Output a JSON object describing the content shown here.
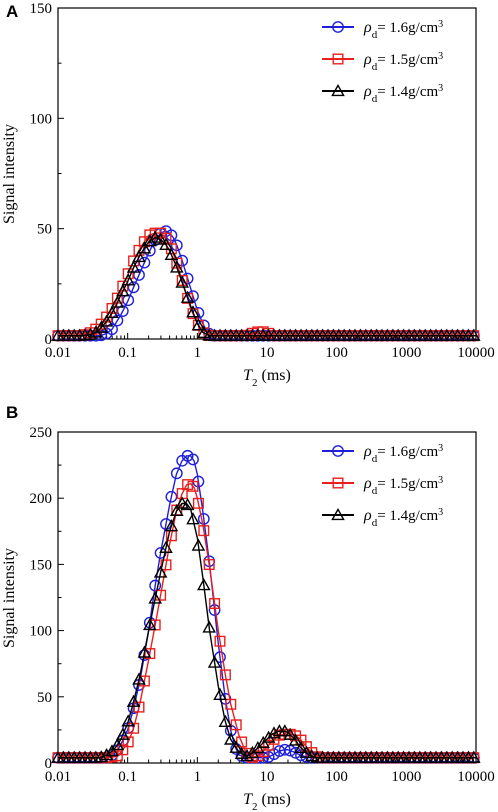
{
  "chart_data": [
    {
      "panel": "A",
      "type": "scatter",
      "xlabel_main": "T",
      "xlabel_sub": "2",
      "xlabel_unit": " (ms)",
      "ylabel": "Signal intensity",
      "xscale": "log",
      "xlim": [
        0.01,
        10000
      ],
      "ylim": [
        0,
        150
      ],
      "xticks": [
        "0.01",
        "0.1",
        "1",
        "10",
        "100",
        "1000",
        "10000"
      ],
      "yticks": [
        "0",
        "50",
        "100",
        "150"
      ],
      "legend_position": "top-right",
      "series": [
        {
          "name": "ρd= 1.6g/cm3",
          "name_main": "ρ",
          "name_sub": "d",
          "name_rest": "= 1.6g/cm",
          "name_sup": "3",
          "color": "#1f1fdb",
          "marker": "circle",
          "x": [
            0.01,
            0.02,
            0.03,
            0.04,
            0.05,
            0.06,
            0.07,
            0.08,
            0.1,
            0.12,
            0.15,
            0.2,
            0.25,
            0.3,
            0.35,
            0.4,
            0.45,
            0.5,
            0.6,
            0.7,
            0.8,
            1,
            1.2,
            1.4,
            1.6,
            2,
            3,
            5,
            8,
            10,
            12,
            15,
            20,
            30,
            50,
            100,
            1000,
            10000
          ],
          "y": [
            1.5,
            1.5,
            1.5,
            1.5,
            2.5,
            4.5,
            8,
            11,
            17,
            23,
            30,
            39,
            45,
            48,
            49,
            48,
            46,
            43,
            36,
            29,
            23,
            13,
            7,
            3,
            1.5,
            1.5,
            1.5,
            1.5,
            1.5,
            1.5,
            1.5,
            1.5,
            1.5,
            1.5,
            1.5,
            1.5,
            1.5,
            1.5
          ]
        },
        {
          "name": "ρd= 1.5g/cm3",
          "name_main": "ρ",
          "name_sub": "d",
          "name_rest": "= 1.5g/cm",
          "name_sup": "3",
          "color": "#e8201c",
          "marker": "square",
          "x": [
            0.01,
            0.02,
            0.025,
            0.03,
            0.035,
            0.04,
            0.05,
            0.06,
            0.07,
            0.08,
            0.1,
            0.12,
            0.15,
            0.2,
            0.25,
            0.3,
            0.35,
            0.4,
            0.5,
            0.6,
            0.7,
            0.8,
            1,
            1.2,
            1.5,
            2,
            3,
            5,
            6,
            8,
            10,
            12,
            20,
            50,
            100,
            1000,
            10000
          ],
          "y": [
            1.5,
            1.5,
            2,
            3,
            4.5,
            6,
            10,
            14,
            18,
            22,
            29,
            35,
            41,
            47,
            48,
            48,
            46,
            43,
            35,
            27,
            20,
            14,
            7,
            3,
            1.5,
            1.5,
            1.5,
            1.5,
            2.5,
            3.5,
            3,
            1.5,
            1.5,
            1.5,
            1.5,
            1.5,
            1.5
          ]
        },
        {
          "name": "ρd= 1.4g/cm3",
          "name_main": "ρ",
          "name_sub": "d",
          "name_rest": "= 1.4g/cm",
          "name_sup": "3",
          "color": "#000000",
          "marker": "triangle",
          "x": [
            0.01,
            0.02,
            0.03,
            0.035,
            0.04,
            0.05,
            0.06,
            0.07,
            0.08,
            0.1,
            0.12,
            0.15,
            0.2,
            0.25,
            0.3,
            0.35,
            0.4,
            0.5,
            0.6,
            0.7,
            0.8,
            1,
            1.2,
            1.5,
            2,
            3,
            5,
            10,
            20,
            50,
            100,
            1000,
            10000
          ],
          "y": [
            1.5,
            1.5,
            2,
            3,
            4.5,
            8,
            12,
            16,
            20,
            26,
            32,
            38,
            44,
            46,
            45,
            43,
            40,
            33,
            26,
            20,
            15,
            7,
            3,
            1.5,
            1.5,
            1.5,
            1.5,
            1.5,
            1.5,
            1.5,
            1.5,
            1.5,
            1.5
          ]
        }
      ]
    },
    {
      "panel": "B",
      "type": "scatter",
      "xlabel_main": "T",
      "xlabel_sub": "2",
      "xlabel_unit": " (ms)",
      "ylabel": "Signal intensity",
      "xscale": "log",
      "xlim": [
        0.01,
        10000
      ],
      "ylim": [
        0,
        250
      ],
      "xticks": [
        "0.01",
        "0.1",
        "1",
        "10",
        "100",
        "1000",
        "10000"
      ],
      "yticks": [
        "0",
        "50",
        "100",
        "150",
        "200",
        "250"
      ],
      "legend_position": "top-right",
      "series": [
        {
          "name": "ρd= 1.6g/cm3",
          "name_main": "ρ",
          "name_sub": "d",
          "name_rest": "= 1.6g/cm",
          "name_sup": "3",
          "color": "#1f1fdb",
          "marker": "circle",
          "x": [
            0.01,
            0.03,
            0.05,
            0.06,
            0.07,
            0.08,
            0.1,
            0.12,
            0.15,
            0.2,
            0.25,
            0.3,
            0.4,
            0.5,
            0.6,
            0.7,
            0.8,
            0.9,
            1,
            1.2,
            1.5,
            2,
            2.5,
            3,
            3.5,
            4,
            5,
            6,
            8,
            10,
            12,
            15,
            18,
            20,
            25,
            30,
            40,
            50,
            100,
            1000,
            10000
          ],
          "y": [
            4,
            4,
            4,
            6,
            9,
            14,
            25,
            40,
            62,
            100,
            135,
            160,
            195,
            218,
            228,
            232,
            232,
            228,
            218,
            190,
            150,
            90,
            50,
            25,
            12,
            6,
            4,
            4,
            4,
            4,
            6,
            9,
            10,
            10,
            8,
            6,
            4,
            4,
            4,
            4,
            4
          ]
        },
        {
          "name": "ρd= 1.5g/cm3",
          "name_main": "ρ",
          "name_sub": "d",
          "name_rest": "= 1.5g/cm",
          "name_sup": "3",
          "color": "#e8201c",
          "marker": "square",
          "x": [
            0.01,
            0.05,
            0.07,
            0.08,
            0.1,
            0.12,
            0.15,
            0.2,
            0.25,
            0.3,
            0.4,
            0.5,
            0.6,
            0.7,
            0.8,
            0.9,
            1,
            1.2,
            1.5,
            2,
            2.5,
            3,
            4,
            5,
            6,
            8,
            10,
            12,
            15,
            20,
            25,
            30,
            40,
            50,
            60,
            100,
            1000,
            10000
          ],
          "y": [
            4,
            4,
            5,
            8,
            15,
            25,
            45,
            78,
            105,
            128,
            165,
            190,
            203,
            210,
            211,
            208,
            200,
            180,
            148,
            100,
            68,
            45,
            20,
            8,
            4,
            6,
            12,
            17,
            21,
            22,
            21,
            18,
            10,
            5,
            4,
            4,
            4,
            4
          ]
        },
        {
          "name": "ρd= 1.4g/cm3",
          "name_main": "ρ",
          "name_sub": "d",
          "name_rest": "= 1.4g/cm",
          "name_sup": "3",
          "color": "#000000",
          "marker": "triangle",
          "x": [
            0.01,
            0.04,
            0.05,
            0.06,
            0.07,
            0.08,
            0.1,
            0.12,
            0.15,
            0.2,
            0.25,
            0.3,
            0.4,
            0.5,
            0.6,
            0.7,
            0.8,
            1,
            1.2,
            1.5,
            2,
            2.5,
            3,
            4,
            5,
            6,
            8,
            10,
            12,
            15,
            18,
            20,
            25,
            30,
            40,
            50,
            100,
            1000,
            10000
          ],
          "y": [
            4,
            4,
            6,
            9,
            13,
            18,
            30,
            45,
            66,
            100,
            125,
            145,
            175,
            190,
            196,
            196,
            192,
            170,
            140,
            100,
            58,
            32,
            18,
            8,
            5,
            7,
            13,
            18,
            22,
            24,
            24,
            23,
            18,
            12,
            6,
            4,
            4,
            4,
            4
          ]
        }
      ]
    }
  ]
}
